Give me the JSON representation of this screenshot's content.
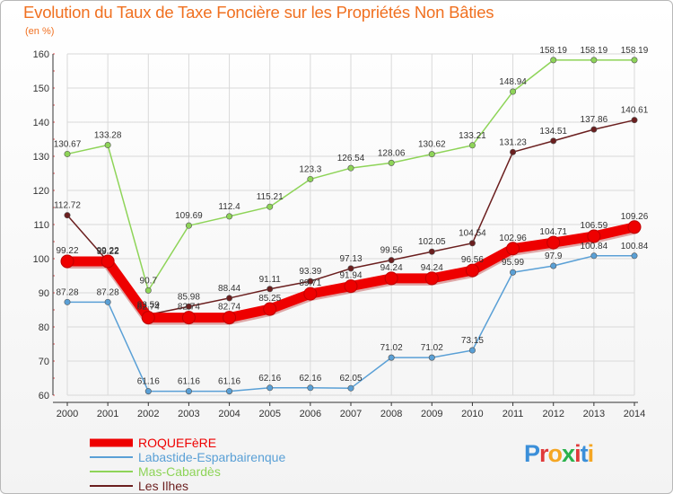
{
  "title": "Evolution du Taux de Taxe Foncière sur les Propriétés Non Bâties",
  "subtitle": "(en %)",
  "logo": "Proxiti",
  "colors": {
    "title": "#f07020",
    "grid": "#d9d9d9",
    "axis": "#333333",
    "ROQUEFèRE": "#ee0000",
    "Labastide-Esparbairenque": "#5aa0d6",
    "Mas-Cabardès": "#8ed458",
    "Les Ilhes": "#6b1f1f"
  },
  "chart_data": {
    "type": "line",
    "title": "Evolution du Taux de Taxe Foncière sur les Propriétés Non Bâties",
    "ylabel": "(en %)",
    "xlabel": "",
    "categories": [
      "2000",
      "2001",
      "2002",
      "2003",
      "2004",
      "2005",
      "2006",
      "2007",
      "2008",
      "2009",
      "2010",
      "2011",
      "2012",
      "2013",
      "2014"
    ],
    "ylim": [
      60,
      160
    ],
    "yticks": [
      60,
      70,
      80,
      90,
      100,
      110,
      120,
      130,
      140,
      150,
      160
    ],
    "grid": true,
    "legend_position": "bottom-left",
    "series": [
      {
        "name": "ROQUEFèRE",
        "values": [
          99.22,
          99.22,
          82.74,
          82.74,
          82.74,
          85.25,
          89.71,
          91.94,
          94.24,
          94.24,
          96.56,
          102.96,
          104.71,
          106.59,
          109.26
        ],
        "labels": [
          "99.22",
          "99.22",
          "82.74",
          "82.74",
          "82.74",
          "85.25",
          "89.71",
          "91.94",
          "94.24",
          "94.24",
          "96.56",
          "102.96",
          "104.71",
          "106.59",
          "109.26"
        ]
      },
      {
        "name": "Labastide-Esparbairenque",
        "values": [
          87.28,
          87.28,
          61.16,
          61.16,
          61.16,
          62.16,
          62.16,
          62.05,
          71.02,
          71.02,
          73.15,
          95.99,
          97.9,
          100.84,
          100.84
        ],
        "labels": [
          "87.28",
          "87.28",
          "61.16",
          "61.16",
          "61.16",
          "62.16",
          "62.16",
          "62.05",
          "71.02",
          "71.02",
          "73.15",
          "95.99",
          "97.9",
          "100.84",
          "100.84"
        ]
      },
      {
        "name": "Mas-Cabardès",
        "values": [
          130.67,
          133.28,
          90.7,
          109.69,
          112.4,
          115.21,
          123.3,
          126.54,
          128.06,
          130.62,
          133.21,
          148.94,
          158.19,
          158.19,
          158.19
        ],
        "labels": [
          "130.67",
          "133.28",
          "90.7",
          "109.69",
          "112.4",
          "115.21",
          "123.3",
          "126.54",
          "128.06",
          "130.62",
          "133.21",
          "148.94",
          "158.19",
          "158.19",
          "158.19"
        ]
      },
      {
        "name": "Les Ilhes",
        "values": [
          112.72,
          99.22,
          83.59,
          85.98,
          88.44,
          91.11,
          93.39,
          97.13,
          99.56,
          102.05,
          104.54,
          131.23,
          134.51,
          137.86,
          140.61
        ],
        "labels": [
          "112.72",
          "99.22",
          "83.59",
          "85.98",
          "88.44",
          "91.11",
          "93.39",
          "97.13",
          "99.56",
          "102.05",
          "104.54",
          "131.23",
          "134.51",
          "137.86",
          "140.61"
        ]
      }
    ]
  }
}
